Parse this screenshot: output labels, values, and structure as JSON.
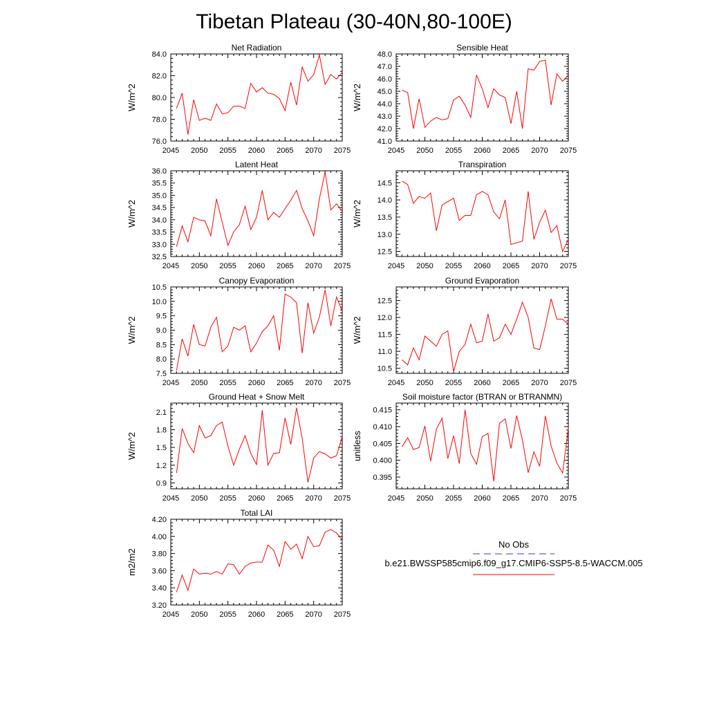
{
  "title": "Tibetan Plateau (30-40N,80-100E)",
  "legend": {
    "entries": [
      {
        "label": "No Obs",
        "color": "#3b3bb0",
        "style": "dashed"
      },
      {
        "label": "b.e21.BWSSP585cmip6.f09_g17.CMIP6-SSP5-8.5-WACCM.005",
        "color": "#ff0000",
        "style": "solid"
      }
    ]
  },
  "chart_data": [
    {
      "type": "line",
      "title": "Net Radiation",
      "ylabel": "W/m^2",
      "xlim": [
        2045,
        2075
      ],
      "ylim": [
        76,
        84
      ],
      "xticks": [
        "2045",
        "2050",
        "2055",
        "2060",
        "2065",
        "2070",
        "2075"
      ],
      "yticks": [
        "76.0",
        "78.0",
        "80.0",
        "82.0",
        "84.0"
      ],
      "x": [
        2046,
        2047,
        2048,
        2049,
        2050,
        2051,
        2052,
        2053,
        2054,
        2055,
        2056,
        2057,
        2058,
        2059,
        2060,
        2061,
        2062,
        2063,
        2064,
        2065,
        2066,
        2067,
        2068,
        2069,
        2070,
        2071,
        2072,
        2073,
        2074,
        2075
      ],
      "series": [
        {
          "color": "#ff0000",
          "values": [
            79.0,
            80.4,
            76.6,
            79.8,
            77.9,
            78.1,
            77.9,
            79.4,
            78.5,
            78.6,
            79.2,
            79.2,
            79.0,
            81.3,
            80.5,
            80.9,
            80.4,
            80.3,
            79.9,
            78.8,
            81.4,
            79.3,
            82.8,
            81.5,
            82.1,
            83.9,
            81.2,
            82.1,
            81.7,
            82.3
          ]
        }
      ]
    },
    {
      "type": "line",
      "title": "Sensible Heat",
      "ylabel": "W/m^2",
      "xlim": [
        2045,
        2075
      ],
      "ylim": [
        41,
        48
      ],
      "xticks": [
        "2045",
        "2050",
        "2055",
        "2060",
        "2065",
        "2070",
        "2075"
      ],
      "yticks": [
        "41.0",
        "42.0",
        "43.0",
        "44.0",
        "45.0",
        "46.0",
        "47.0",
        "48.0"
      ],
      "x": [
        2046,
        2047,
        2048,
        2049,
        2050,
        2051,
        2052,
        2053,
        2054,
        2055,
        2056,
        2057,
        2058,
        2059,
        2060,
        2061,
        2062,
        2063,
        2064,
        2065,
        2066,
        2067,
        2068,
        2069,
        2070,
        2071,
        2072,
        2073,
        2074,
        2075
      ],
      "series": [
        {
          "color": "#ff0000",
          "values": [
            45.1,
            44.9,
            42.0,
            44.4,
            42.1,
            42.6,
            42.9,
            42.7,
            42.8,
            44.3,
            44.6,
            43.9,
            42.9,
            46.3,
            45.2,
            43.7,
            45.2,
            44.7,
            44.5,
            42.4,
            45.0,
            42.0,
            46.8,
            46.7,
            47.4,
            47.5,
            43.9,
            46.4,
            45.8,
            46.3
          ]
        }
      ]
    },
    {
      "type": "line",
      "title": "Latent Heat",
      "ylabel": "W/m^2",
      "xlim": [
        2045,
        2075
      ],
      "ylim": [
        32.5,
        36.0
      ],
      "xticks": [
        "2045",
        "2050",
        "2055",
        "2060",
        "2065",
        "2070",
        "2075"
      ],
      "yticks": [
        "32.5",
        "33.0",
        "33.5",
        "34.0",
        "34.5",
        "35.0",
        "35.5",
        "36.0"
      ],
      "x": [
        2046,
        2047,
        2048,
        2049,
        2050,
        2051,
        2052,
        2053,
        2054,
        2055,
        2056,
        2057,
        2058,
        2059,
        2060,
        2061,
        2062,
        2063,
        2064,
        2065,
        2066,
        2067,
        2068,
        2069,
        2070,
        2071,
        2072,
        2073,
        2074,
        2075
      ],
      "series": [
        {
          "color": "#ff0000",
          "values": [
            32.9,
            33.75,
            33.1,
            34.1,
            34.0,
            33.95,
            33.35,
            34.85,
            33.9,
            32.95,
            33.5,
            33.8,
            34.55,
            33.6,
            34.1,
            35.2,
            34.0,
            34.3,
            34.1,
            34.45,
            34.8,
            35.2,
            34.45,
            33.95,
            33.35,
            34.85,
            35.95,
            34.4,
            34.65,
            34.35
          ]
        }
      ]
    },
    {
      "type": "line",
      "title": "Transpiration",
      "ylabel": "W/m^2",
      "xlim": [
        2045,
        2075
      ],
      "ylim": [
        12.35,
        14.85
      ],
      "xticks": [
        "2045",
        "2050",
        "2055",
        "2060",
        "2065",
        "2070",
        "2075"
      ],
      "yticks": [
        "12.5",
        "13.0",
        "13.5",
        "14.0",
        "14.5"
      ],
      "x": [
        2046,
        2047,
        2048,
        2049,
        2050,
        2051,
        2052,
        2053,
        2054,
        2055,
        2056,
        2057,
        2058,
        2059,
        2060,
        2061,
        2062,
        2063,
        2064,
        2065,
        2066,
        2067,
        2068,
        2069,
        2070,
        2071,
        2072,
        2073,
        2074,
        2075
      ],
      "series": [
        {
          "color": "#ff0000",
          "values": [
            14.55,
            14.45,
            13.9,
            14.1,
            14.05,
            14.2,
            13.1,
            13.85,
            13.95,
            14.05,
            13.4,
            13.55,
            13.55,
            14.15,
            14.25,
            14.15,
            13.65,
            13.45,
            14.0,
            12.7,
            12.75,
            12.8,
            14.25,
            12.85,
            13.35,
            13.7,
            13.05,
            13.25,
            12.5,
            12.85
          ]
        }
      ]
    },
    {
      "type": "line",
      "title": "Canopy Evaporation",
      "ylabel": "W/m^2",
      "xlim": [
        2045,
        2075
      ],
      "ylim": [
        7.5,
        10.5
      ],
      "xticks": [
        "2045",
        "2050",
        "2055",
        "2060",
        "2065",
        "2070",
        "2075"
      ],
      "yticks": [
        "7.5",
        "8.0",
        "8.5",
        "9.0",
        "9.5",
        "10.0",
        "10.5"
      ],
      "x": [
        2046,
        2047,
        2048,
        2049,
        2050,
        2051,
        2052,
        2053,
        2054,
        2055,
        2056,
        2057,
        2058,
        2059,
        2060,
        2061,
        2062,
        2063,
        2064,
        2065,
        2066,
        2067,
        2068,
        2069,
        2070,
        2071,
        2072,
        2073,
        2074,
        2075
      ],
      "series": [
        {
          "color": "#ff0000",
          "values": [
            7.6,
            8.7,
            8.1,
            9.2,
            8.5,
            8.45,
            9.1,
            9.45,
            8.25,
            8.45,
            9.1,
            9.0,
            9.15,
            8.25,
            8.55,
            8.95,
            9.15,
            9.5,
            8.3,
            10.25,
            10.15,
            9.95,
            8.2,
            9.95,
            8.9,
            9.45,
            10.4,
            9.15,
            10.15,
            9.65
          ]
        }
      ]
    },
    {
      "type": "line",
      "title": "Ground Evaporation",
      "ylabel": "W/m^2",
      "xlim": [
        2045,
        2075
      ],
      "ylim": [
        10.35,
        12.9
      ],
      "xticks": [
        "2045",
        "2050",
        "2055",
        "2060",
        "2065",
        "2070",
        "2075"
      ],
      "yticks": [
        "10.5",
        "11.0",
        "11.5",
        "12.0",
        "12.5"
      ],
      "x": [
        2046,
        2047,
        2048,
        2049,
        2050,
        2051,
        2052,
        2053,
        2054,
        2055,
        2056,
        2057,
        2058,
        2059,
        2060,
        2061,
        2062,
        2063,
        2064,
        2065,
        2066,
        2067,
        2068,
        2069,
        2070,
        2071,
        2072,
        2073,
        2074,
        2075
      ],
      "series": [
        {
          "color": "#ff0000",
          "values": [
            10.75,
            10.6,
            11.1,
            10.75,
            11.45,
            11.3,
            11.15,
            11.5,
            11.6,
            10.4,
            11.0,
            11.2,
            11.8,
            11.25,
            11.3,
            12.1,
            11.3,
            11.4,
            11.8,
            11.5,
            11.95,
            12.45,
            12.0,
            11.1,
            11.05,
            11.75,
            12.55,
            11.95,
            11.95,
            11.8
          ]
        }
      ]
    },
    {
      "type": "line",
      "title": "Ground Heat + Snow Melt",
      "ylabel": "W/m^2",
      "xlim": [
        2045,
        2075
      ],
      "ylim": [
        0.8,
        2.25
      ],
      "xticks": [
        "2045",
        "2050",
        "2055",
        "2060",
        "2065",
        "2070",
        "2075"
      ],
      "yticks": [
        "0.9",
        "1.2",
        "1.5",
        "1.8",
        "2.1"
      ],
      "x": [
        2046,
        2047,
        2048,
        2049,
        2050,
        2051,
        2052,
        2053,
        2054,
        2055,
        2056,
        2057,
        2058,
        2059,
        2060,
        2061,
        2062,
        2063,
        2064,
        2065,
        2066,
        2067,
        2068,
        2069,
        2070,
        2071,
        2072,
        2073,
        2074,
        2075
      ],
      "series": [
        {
          "color": "#ff0000",
          "values": [
            1.07,
            1.82,
            1.57,
            1.41,
            1.87,
            1.66,
            1.7,
            1.87,
            1.93,
            1.52,
            1.2,
            1.47,
            1.7,
            1.4,
            1.21,
            2.13,
            1.2,
            1.4,
            1.41,
            2.0,
            1.55,
            2.17,
            1.65,
            0.91,
            1.32,
            1.43,
            1.39,
            1.32,
            1.36,
            1.68
          ]
        }
      ]
    },
    {
      "type": "line",
      "title": "Soil moisture factor (BTRAN or BTRANMN)",
      "ylabel": "unitless",
      "xlim": [
        2045,
        2075
      ],
      "ylim": [
        0.3915,
        0.417
      ],
      "xticks": [
        "2045",
        "2050",
        "2055",
        "2060",
        "2065",
        "2070",
        "2075"
      ],
      "yticks": [
        "0.395",
        "0.400",
        "0.405",
        "0.410",
        "0.415"
      ],
      "x": [
        2046,
        2047,
        2048,
        2049,
        2050,
        2051,
        2052,
        2053,
        2054,
        2055,
        2056,
        2057,
        2058,
        2059,
        2060,
        2061,
        2062,
        2063,
        2064,
        2065,
        2066,
        2067,
        2068,
        2069,
        2070,
        2071,
        2072,
        2073,
        2074,
        2075
      ],
      "series": [
        {
          "color": "#ff0000",
          "values": [
            0.404,
            0.4067,
            0.4032,
            0.4038,
            0.4102,
            0.3997,
            0.4092,
            0.4125,
            0.4005,
            0.4073,
            0.399,
            0.415,
            0.402,
            0.3988,
            0.407,
            0.408,
            0.3937,
            0.411,
            0.4123,
            0.4035,
            0.4133,
            0.406,
            0.3963,
            0.4025,
            0.3982,
            0.4132,
            0.4042,
            0.3992,
            0.3962,
            0.4095
          ]
        }
      ]
    },
    {
      "type": "line",
      "title": "Total LAI",
      "ylabel": "m2/m2",
      "xlim": [
        2045,
        2075
      ],
      "ylim": [
        3.2,
        4.2
      ],
      "xticks": [
        "2045",
        "2050",
        "2055",
        "2060",
        "2065",
        "2070",
        "2075"
      ],
      "yticks": [
        "3.20",
        "3.40",
        "3.60",
        "3.80",
        "4.00",
        "4.20"
      ],
      "x": [
        2046,
        2047,
        2048,
        2049,
        2050,
        2051,
        2052,
        2053,
        2054,
        2055,
        2056,
        2057,
        2058,
        2059,
        2060,
        2061,
        2062,
        2063,
        2064,
        2065,
        2066,
        2067,
        2068,
        2069,
        2070,
        2071,
        2072,
        2073,
        2074,
        2075
      ],
      "series": [
        {
          "color": "#ff0000",
          "values": [
            3.35,
            3.55,
            3.37,
            3.62,
            3.56,
            3.57,
            3.56,
            3.59,
            3.56,
            3.68,
            3.67,
            3.56,
            3.65,
            3.69,
            3.7,
            3.7,
            3.9,
            3.84,
            3.65,
            3.94,
            3.85,
            3.91,
            3.74,
            4.0,
            3.88,
            3.89,
            4.05,
            4.08,
            4.04,
            3.96
          ]
        }
      ]
    }
  ]
}
